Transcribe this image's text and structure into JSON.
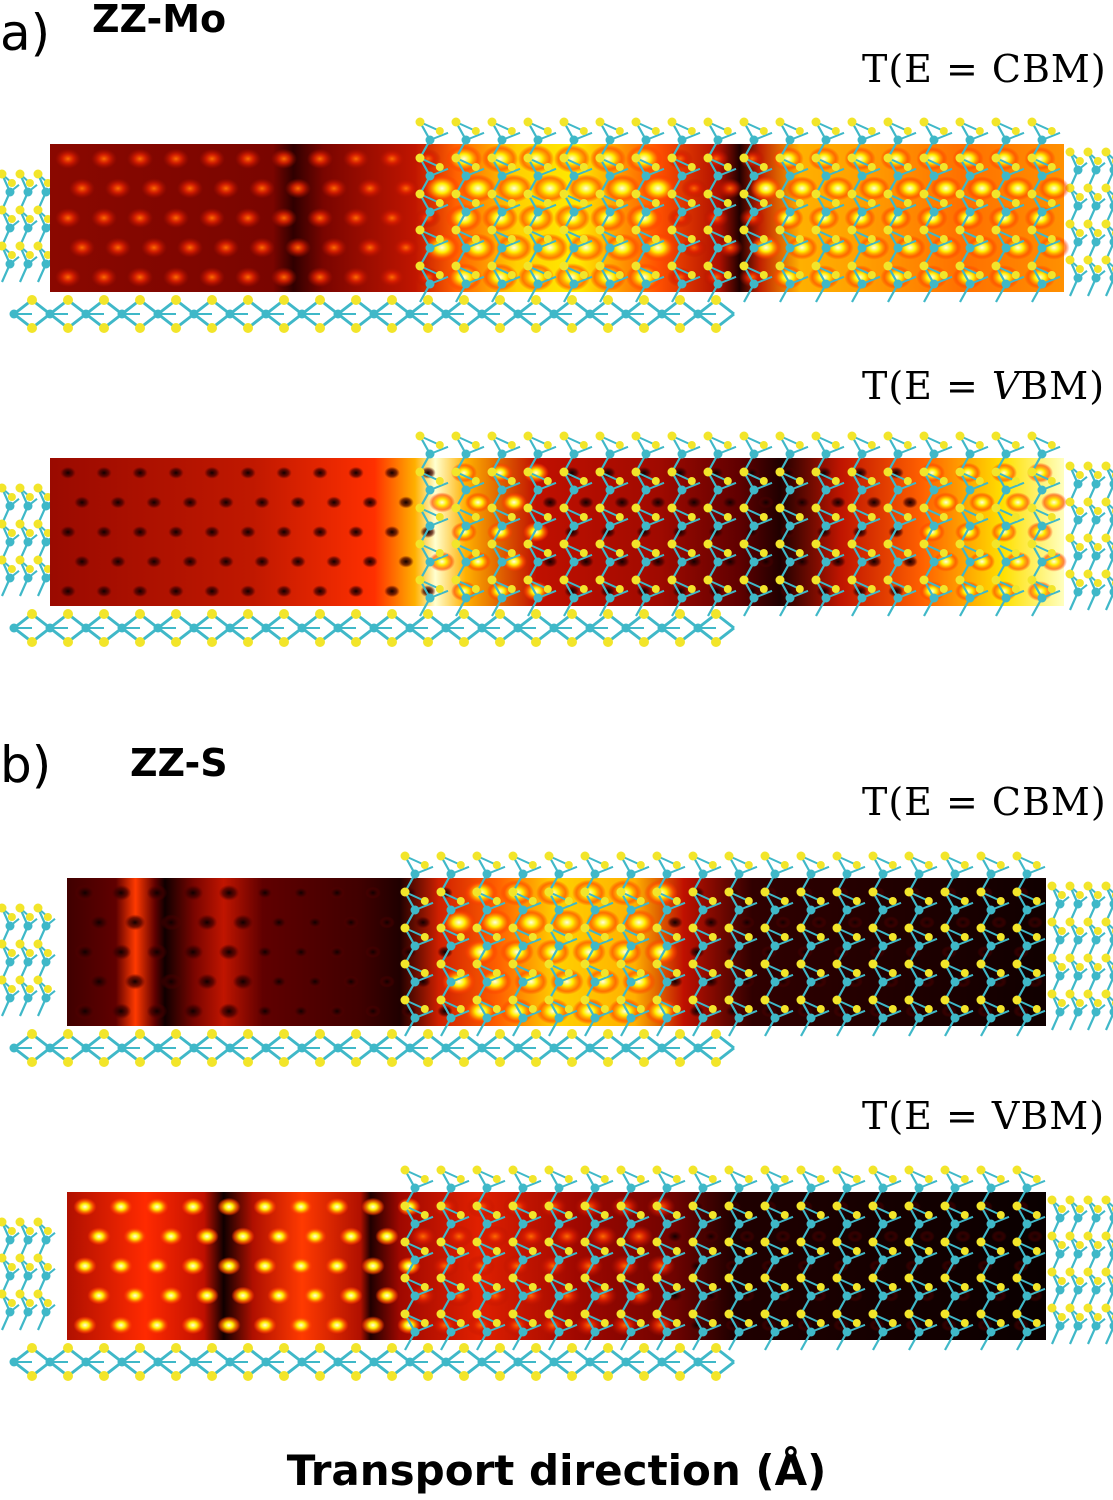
{
  "panels": [
    {
      "letter": "a)",
      "title": "ZZ-Mo",
      "maps": [
        {
          "label_prefix": "T(E = ",
          "label_var": "CBM",
          "label_var_italic": false,
          "label_suffix": ")",
          "pattern": "mo-cbm"
        },
        {
          "label_prefix": "T(E = ",
          "label_var": "V",
          "label_var_italic": true,
          "label_rest": "BM",
          "label_suffix": ")",
          "pattern": "mo-vbm"
        }
      ]
    },
    {
      "letter": "b)",
      "title": "ZZ-S",
      "maps": [
        {
          "label_prefix": "T(E = ",
          "label_var": "CBM",
          "label_var_italic": false,
          "label_suffix": ")",
          "pattern": "s-cbm"
        },
        {
          "label_prefix": "T(E = ",
          "label_var": "VBM",
          "label_var_italic": false,
          "label_suffix": ")",
          "pattern": "s-vbm"
        }
      ]
    }
  ],
  "x_axis_label": "Transport direction (Å)",
  "colors": {
    "heat_dark": "#2a0000",
    "heat_mid": "#b01000",
    "heat_bright": "#ff3000",
    "heat_hot": "#ffee00",
    "atom_mo": "#3fb8c8",
    "atom_s": "#f2e52a",
    "bond": "#3fb8c8"
  }
}
